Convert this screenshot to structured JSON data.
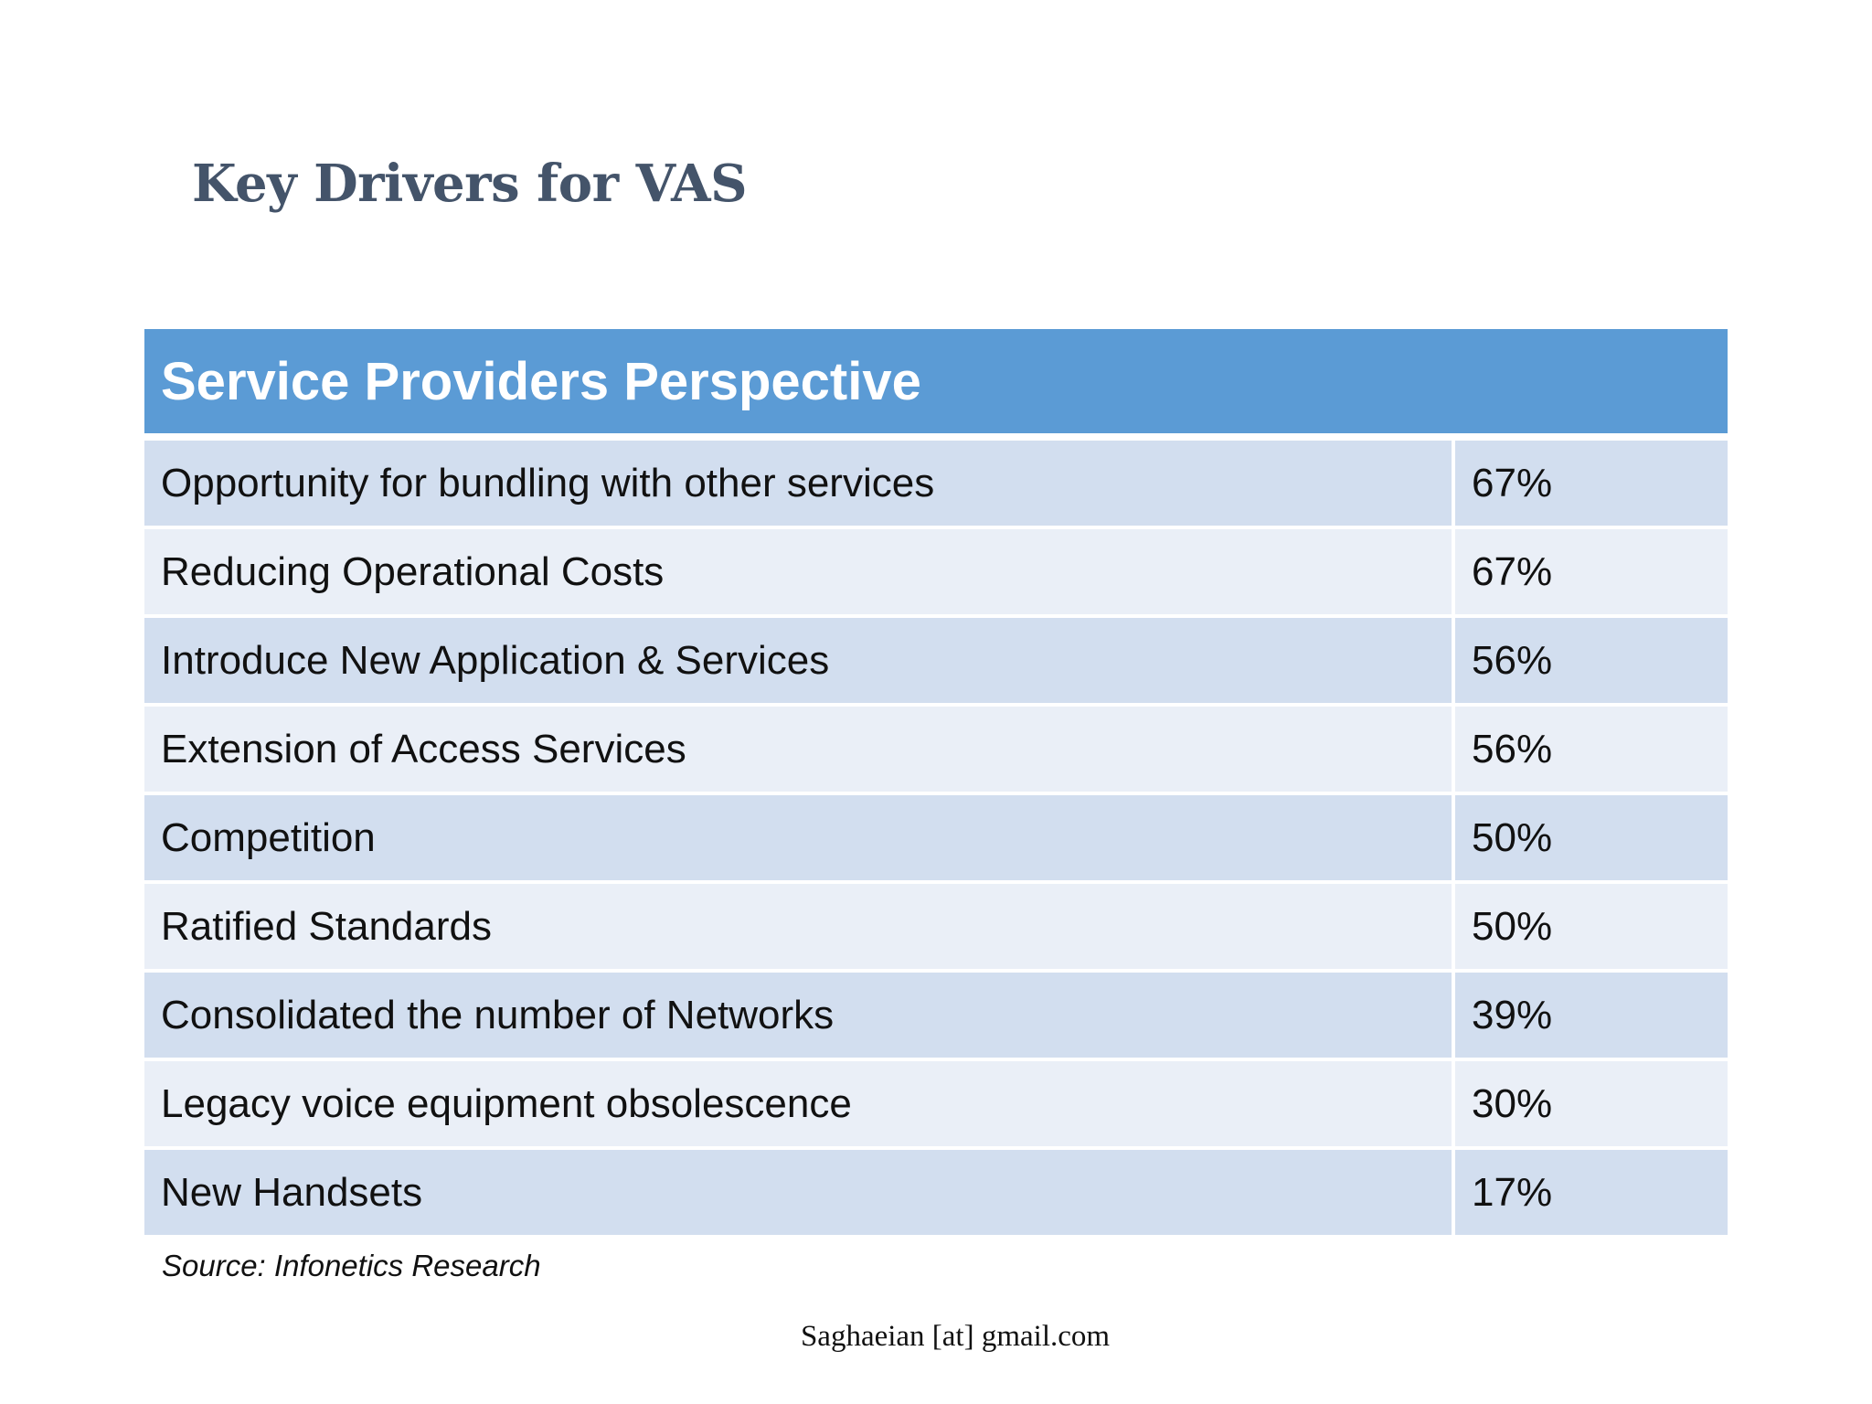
{
  "slide": {
    "title": "Key Drivers for VAS"
  },
  "table": {
    "header": "Service Providers Perspective",
    "rows": [
      {
        "label": "Opportunity for bundling with other services",
        "value": "67%"
      },
      {
        "label": "Reducing Operational Costs",
        "value": "67%"
      },
      {
        "label": "Introduce New Application & Services",
        "value": "56%"
      },
      {
        "label": "Extension of Access Services",
        "value": "56%"
      },
      {
        "label": "Competition",
        "value": "50%"
      },
      {
        "label": "Ratified Standards",
        "value": "50%"
      },
      {
        "label": "Consolidated the number of Networks",
        "value": "39%"
      },
      {
        "label": "Legacy voice equipment obsolescence",
        "value": "30%"
      },
      {
        "label": "New Handsets",
        "value": "17%"
      }
    ]
  },
  "source": "Source: Infonetics Research",
  "footer": "Saghaeian [at] gmail.com",
  "colors": {
    "title": "#44546a",
    "header_bg": "#5b9bd5",
    "row_dark": "#d2deef",
    "row_light": "#eaeff7"
  }
}
